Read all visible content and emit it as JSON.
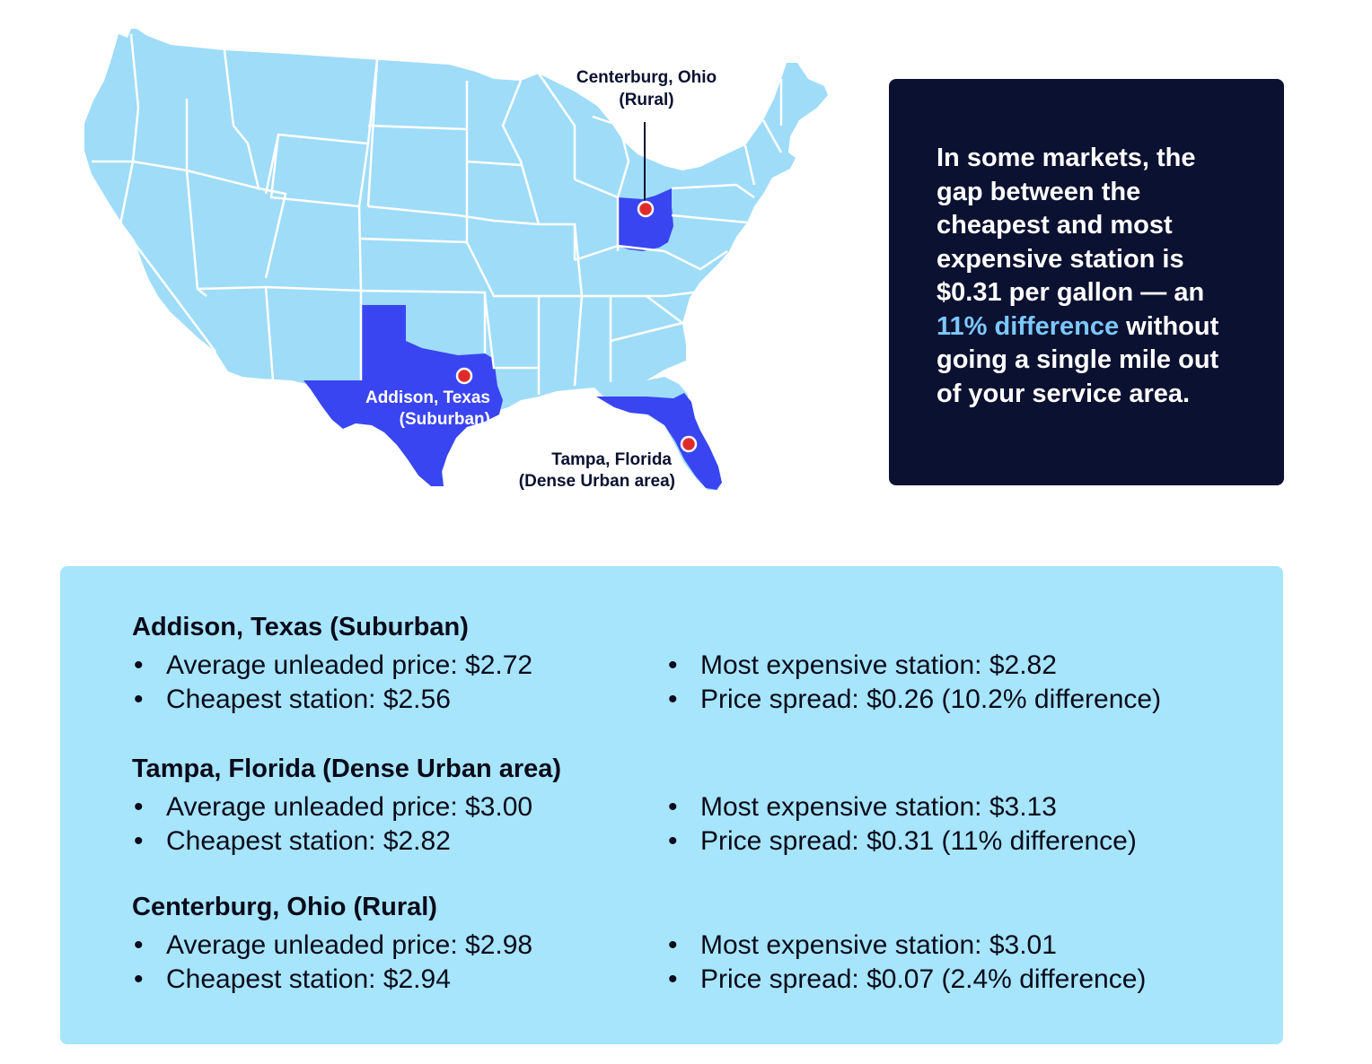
{
  "map": {
    "title": "",
    "colors": {
      "state_fill": "#9fdcf8",
      "highlight_fill": "#3a45f2",
      "border": "#ffffff",
      "marker": "#e02b2b"
    },
    "markers": [
      {
        "label_line1": "Centerburg, Ohio",
        "label_line2": "(Rural)"
      },
      {
        "label_line1": "Addison, Texas",
        "label_line2": "(Suburban)"
      },
      {
        "label_line1": "Tampa, Florida",
        "label_line2": "(Dense Urban area)"
      }
    ]
  },
  "callout": {
    "text_before": "In some markets, the gap between the cheapest and most expensive station is $0.31 per gallon — an ",
    "highlight": "11% difference",
    "text_after": " without going a single mile out of your service area."
  },
  "locations": [
    {
      "title": "Addison, Texas (Suburban)",
      "avg": "Average unleaded price: $2.72",
      "cheapest": "Cheapest station: $2.56",
      "most_expensive": "Most expensive station: $2.82",
      "spread": "Price spread: $0.26 (10.2% difference)"
    },
    {
      "title": "Tampa, Florida (Dense Urban area)",
      "avg": "Average unleaded price: $3.00",
      "cheapest": "Cheapest station: $2.82",
      "most_expensive": "Most expensive station: $3.13",
      "spread": "Price spread: $0.31 (11% difference)"
    },
    {
      "title": "Centerburg, Ohio (Rural)",
      "avg": "Average unleaded price: $2.98",
      "cheapest": "Cheapest station: $2.94",
      "most_expensive": "Most expensive station: $3.01",
      "spread": "Price spread: $0.07 (2.4% difference)"
    }
  ]
}
